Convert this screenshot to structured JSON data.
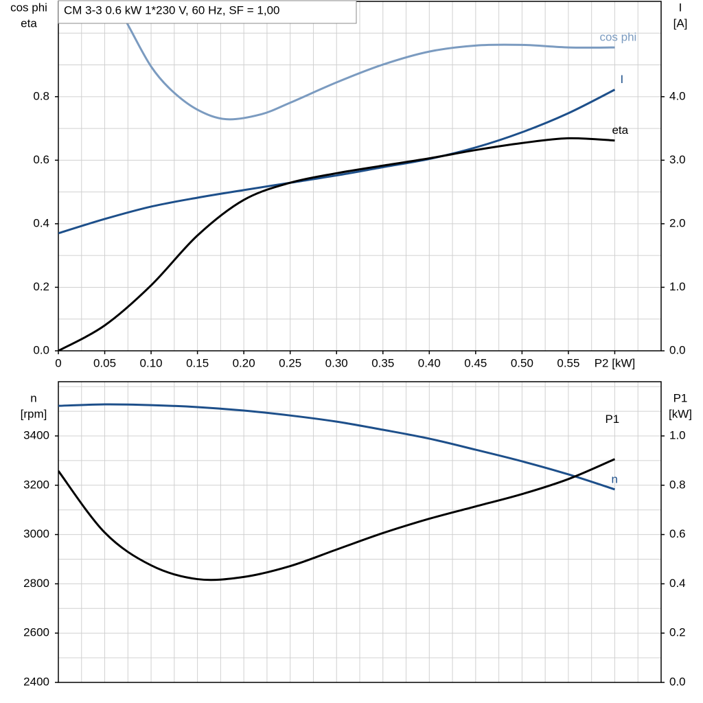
{
  "chart_data": [
    {
      "type": "line",
      "title": "CM 3-3   0.6 kW   1*230 V, 60 Hz, SF = 1,00",
      "ylabel": [
        "cos phi",
        "eta"
      ],
      "y2label": [
        "I",
        "[A]"
      ],
      "x": [
        0,
        0.05,
        0.1,
        0.15,
        0.2,
        0.25,
        0.3,
        0.35,
        0.4,
        0.45,
        0.5,
        0.55,
        0.6
      ],
      "xlim": [
        0,
        0.65
      ],
      "xticks": [
        0,
        0.05,
        {
          "value": 0.1,
          "label": "0.10"
        },
        0.15,
        {
          "value": 0.2,
          "label": "0.20"
        },
        0.25,
        {
          "value": 0.3,
          "label": "0.30"
        },
        0.35,
        {
          "value": 0.4,
          "label": "0.40"
        },
        0.45,
        {
          "value": 0.5,
          "label": "0.50"
        },
        0.55,
        {
          "value": 0.6,
          "label": "P2 [kW]"
        }
      ],
      "ylim": [
        0,
        1.1
      ],
      "yticks": [
        {
          "value": 0,
          "label": "0.0"
        },
        0.2,
        0.4,
        0.6,
        0.8
      ],
      "y2lim": [
        0,
        5.5
      ],
      "y2ticks": [
        {
          "value": 0,
          "label": "0.0"
        },
        {
          "value": 1,
          "label": "1.0"
        },
        {
          "value": 2,
          "label": "2.0"
        },
        {
          "value": 3,
          "label": "3.0"
        },
        {
          "value": 4,
          "label": "4.0"
        }
      ],
      "grid": true,
      "minor_grid": true,
      "series": [
        {
          "name": "cos phi",
          "color": "#7b9bc0",
          "x": [
            0.06,
            0.078,
            0.1,
            0.122,
            0.15,
            0.181,
            0.218,
            0.25,
            0.3,
            0.35,
            0.4,
            0.45,
            0.5,
            0.55,
            0.6
          ],
          "values": [
            1.11,
            1.01,
            0.895,
            0.82,
            0.759,
            0.729,
            0.744,
            0.781,
            0.845,
            0.901,
            0.942,
            0.961,
            0.963,
            0.955,
            0.955
          ]
        },
        {
          "name": "I",
          "color": "#1d4f8a",
          "axis": "y2",
          "values": [
            1.85,
            2.075,
            2.27,
            2.41,
            2.53,
            2.645,
            2.76,
            2.89,
            3.02,
            3.2,
            3.44,
            3.74,
            4.11
          ]
        },
        {
          "name": "eta",
          "color": "#000000",
          "values": [
            0,
            0.08,
            0.206,
            0.363,
            0.475,
            0.529,
            0.559,
            0.583,
            0.606,
            0.632,
            0.654,
            0.669,
            0.662
          ]
        }
      ]
    },
    {
      "type": "line",
      "ylabel": [
        "n",
        "[rpm]"
      ],
      "y2label": [
        "P1",
        "[kW]"
      ],
      "x": [
        0,
        0.05,
        0.1,
        0.15,
        0.2,
        0.25,
        0.3,
        0.35,
        0.4,
        0.45,
        0.5,
        0.55,
        0.6
      ],
      "xlim": [
        0,
        0.65
      ],
      "ylim": [
        2400,
        3620
      ],
      "yticks": [
        2400,
        2600,
        2800,
        3000,
        3200,
        3400
      ],
      "y2lim": [
        0,
        1.22
      ],
      "y2ticks": [
        {
          "value": 0,
          "label": "0.0"
        },
        0.2,
        0.4,
        0.6,
        0.8,
        {
          "value": 1,
          "label": "1.0"
        }
      ],
      "grid": true,
      "minor_grid": true,
      "series": [
        {
          "name": "n",
          "color": "#1d4f8a",
          "values": [
            3522,
            3528,
            3525,
            3517,
            3503,
            3483,
            3458,
            3425,
            3389,
            3344,
            3297,
            3244,
            3183
          ]
        },
        {
          "name": "P1",
          "color": "#000000",
          "axis": "y2",
          "values": [
            0.858,
            0.608,
            0.475,
            0.419,
            0.428,
            0.472,
            0.539,
            0.606,
            0.664,
            0.714,
            0.764,
            0.825,
            0.906
          ]
        }
      ]
    }
  ]
}
